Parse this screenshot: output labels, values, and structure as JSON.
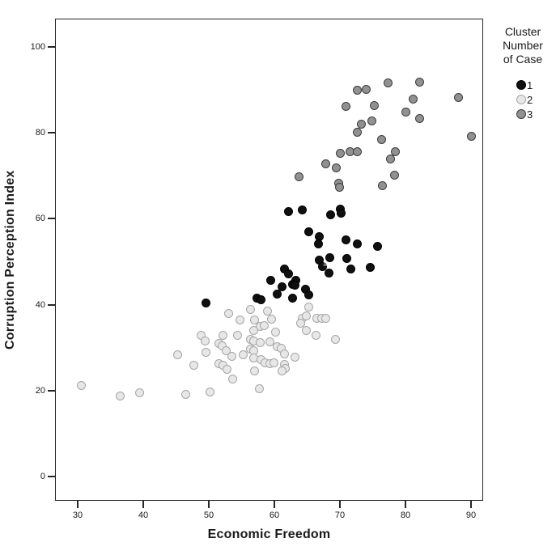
{
  "figure": {
    "background": "#ffffff",
    "frame_color": "#262626",
    "text_color": "#1a1a1a"
  },
  "chart_data": {
    "type": "scatter",
    "title": "",
    "xlabel": "Economic Freedom",
    "ylabel": "Corruption Perception Index",
    "x_ticks": [
      30,
      40,
      50,
      60,
      70,
      80,
      90
    ],
    "y_ticks": [
      0,
      20,
      40,
      60,
      80,
      100
    ],
    "xlim": [
      26.5,
      91.9
    ],
    "ylim": [
      -5.6,
      106.6
    ],
    "grid": false,
    "legend": {
      "title_lines": [
        "Cluster",
        "Number",
        "of Case"
      ],
      "position": "top-right-outside",
      "items": [
        {
          "label": "1",
          "fill": "#101010",
          "stroke": "#000000"
        },
        {
          "label": "2",
          "fill": "#e7e7e7",
          "stroke": "#a6a6a6"
        },
        {
          "label": "3",
          "fill": "#919191",
          "stroke": "#3d3d3d"
        }
      ]
    },
    "series": [
      {
        "name": "1",
        "fill": "#101010",
        "stroke": "#000000",
        "points": [
          [
            62.2,
            61.7
          ],
          [
            64.2,
            62.0
          ],
          [
            68.6,
            60.9
          ],
          [
            70.1,
            62.2
          ],
          [
            70.2,
            61.3
          ],
          [
            65.3,
            57.0
          ],
          [
            66.9,
            55.8
          ],
          [
            66.7,
            54.1
          ],
          [
            70.9,
            55.1
          ],
          [
            72.6,
            54.1
          ],
          [
            75.8,
            53.6
          ],
          [
            66.9,
            50.4
          ],
          [
            68.4,
            50.9
          ],
          [
            71.0,
            50.8
          ],
          [
            67.3,
            48.9
          ],
          [
            68.3,
            47.4
          ],
          [
            71.7,
            48.3
          ],
          [
            74.6,
            48.7
          ],
          [
            61.6,
            48.3
          ],
          [
            62.2,
            47.2
          ],
          [
            63.3,
            45.7
          ],
          [
            59.4,
            45.7
          ],
          [
            62.8,
            44.7
          ],
          [
            63.1,
            44.5
          ],
          [
            61.2,
            44.2
          ],
          [
            64.7,
            43.6
          ],
          [
            60.4,
            42.5
          ],
          [
            65.2,
            42.3
          ],
          [
            57.4,
            41.5
          ],
          [
            58.0,
            41.2
          ],
          [
            62.8,
            41.5
          ],
          [
            49.6,
            40.4
          ]
        ]
      },
      {
        "name": "2",
        "fill": "#e7e7e7",
        "stroke": "#a6a6a6",
        "points": [
          [
            53.0,
            38.0
          ],
          [
            54.7,
            36.5
          ],
          [
            48.8,
            32.9
          ],
          [
            49.4,
            31.6
          ],
          [
            52.1,
            32.9
          ],
          [
            54.4,
            32.9
          ],
          [
            51.5,
            31.0
          ],
          [
            52.0,
            30.5
          ],
          [
            49.6,
            28.9
          ],
          [
            52.7,
            29.3
          ],
          [
            53.5,
            28.0
          ],
          [
            55.3,
            28.4
          ],
          [
            45.3,
            28.4
          ],
          [
            47.7,
            25.9
          ],
          [
            51.5,
            26.3
          ],
          [
            52.1,
            25.9
          ],
          [
            52.8,
            25.0
          ],
          [
            53.7,
            22.7
          ],
          [
            30.6,
            21.2
          ],
          [
            36.5,
            18.8
          ],
          [
            39.5,
            19.4
          ],
          [
            46.5,
            19.2
          ],
          [
            50.2,
            19.7
          ],
          [
            56.4,
            38.9
          ],
          [
            58.9,
            38.5
          ],
          [
            57.0,
            36.5
          ],
          [
            59.6,
            36.7
          ],
          [
            65.3,
            39.5
          ],
          [
            64.3,
            36.8
          ],
          [
            64.9,
            37.3
          ],
          [
            64.0,
            35.6
          ],
          [
            66.5,
            36.8
          ],
          [
            67.2,
            36.8
          ],
          [
            67.8,
            36.8
          ],
          [
            57.9,
            35.0
          ],
          [
            58.5,
            35.2
          ],
          [
            56.9,
            34.0
          ],
          [
            60.2,
            33.6
          ],
          [
            64.9,
            34.0
          ],
          [
            66.3,
            32.9
          ],
          [
            56.3,
            32.0
          ],
          [
            56.8,
            31.6
          ],
          [
            57.9,
            31.2
          ],
          [
            59.3,
            31.4
          ],
          [
            69.3,
            32.0
          ],
          [
            56.3,
            29.7
          ],
          [
            56.9,
            29.3
          ],
          [
            56.8,
            27.6
          ],
          [
            60.4,
            30.3
          ],
          [
            61.0,
            29.9
          ],
          [
            61.5,
            28.6
          ],
          [
            63.2,
            27.8
          ],
          [
            58.0,
            27.3
          ],
          [
            58.6,
            26.5
          ],
          [
            59.3,
            26.3
          ],
          [
            59.9,
            26.5
          ],
          [
            61.6,
            26.1
          ],
          [
            61.7,
            25.2
          ],
          [
            61.2,
            24.6
          ],
          [
            57.0,
            24.6
          ],
          [
            57.7,
            20.5
          ]
        ]
      },
      {
        "name": "3",
        "fill": "#919191",
        "stroke": "#3d3d3d",
        "points": [
          [
            72.6,
            90.0
          ],
          [
            74.0,
            90.2
          ],
          [
            77.3,
            91.7
          ],
          [
            82.2,
            91.9
          ],
          [
            88.1,
            88.3
          ],
          [
            70.9,
            86.1
          ],
          [
            75.2,
            86.3
          ],
          [
            81.2,
            87.8
          ],
          [
            80.0,
            84.8
          ],
          [
            82.2,
            83.3
          ],
          [
            73.3,
            82.1
          ],
          [
            74.9,
            82.7
          ],
          [
            72.6,
            80.1
          ],
          [
            90.1,
            79.1
          ],
          [
            76.4,
            78.4
          ],
          [
            70.0,
            75.2
          ],
          [
            71.5,
            75.6
          ],
          [
            72.6,
            75.6
          ],
          [
            78.5,
            75.6
          ],
          [
            77.7,
            73.9
          ],
          [
            67.9,
            72.7
          ],
          [
            69.4,
            71.8
          ],
          [
            63.8,
            69.7
          ],
          [
            78.3,
            70.1
          ],
          [
            69.8,
            68.2
          ],
          [
            69.9,
            67.3
          ],
          [
            76.5,
            67.7
          ]
        ]
      }
    ],
    "annotations": [
      {
        "text": "a",
        "x": 67.7,
        "y": 49.4,
        "color": "#c9c9c9"
      }
    ]
  }
}
